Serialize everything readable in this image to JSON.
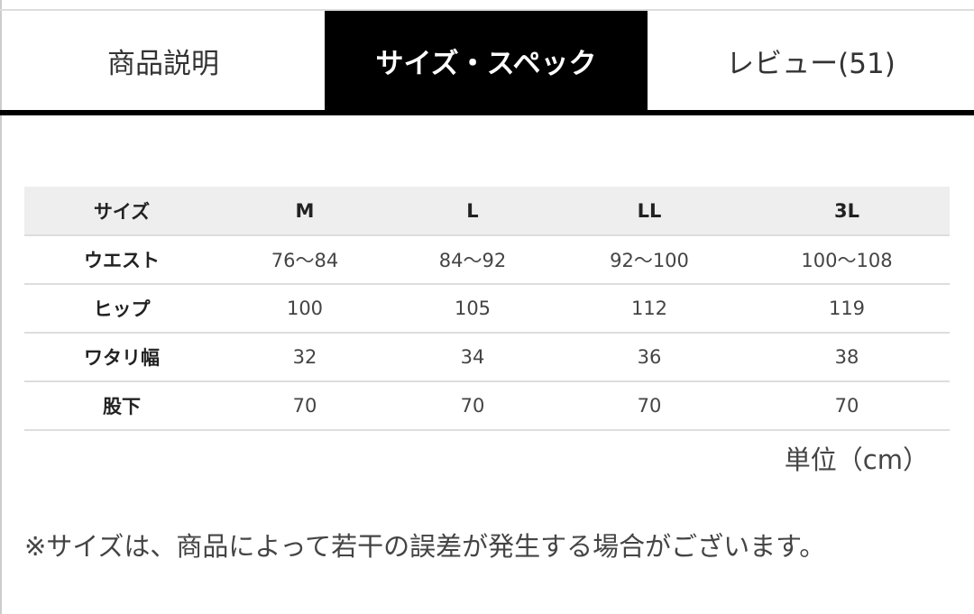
{
  "tabs": [
    {
      "label": "商品説明"
    },
    {
      "label": "サイズ・スペック",
      "active": true
    },
    {
      "label": "レビュー(51)"
    }
  ],
  "table": {
    "header": [
      "サイズ",
      "M",
      "L",
      "LL",
      "3L"
    ],
    "rows": [
      {
        "label": "ウエスト",
        "values": [
          "76〜84",
          "84〜92",
          "92〜100",
          "100〜108"
        ]
      },
      {
        "label": "ヒップ",
        "values": [
          "100",
          "105",
          "112",
          "119"
        ]
      },
      {
        "label": "ワタリ幅",
        "values": [
          "32",
          "34",
          "36",
          "38"
        ]
      },
      {
        "label": "股下",
        "values": [
          "70",
          "70",
          "70",
          "70"
        ]
      }
    ]
  },
  "unit": "単位（cm）",
  "note": "※サイズは、商品によって若干の誤差が発生する場合がございます。",
  "colors": {
    "active_tab_bg": "#000000",
    "header_bg": "#eeeeee"
  }
}
